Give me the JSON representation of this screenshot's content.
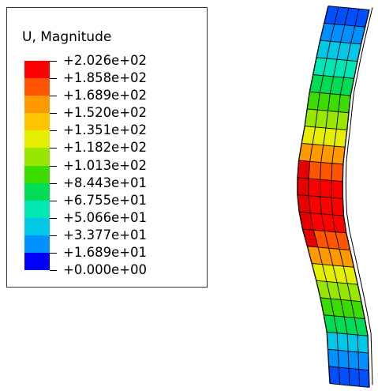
{
  "legend": {
    "title": "U, Magnitude",
    "ticks": [
      "+2.026e+02",
      "+1.858e+02",
      "+1.689e+02",
      "+1.520e+02",
      "+1.351e+02",
      "+1.182e+02",
      "+1.013e+02",
      "+8.443e+01",
      "+6.755e+01",
      "+5.066e+01",
      "+3.377e+01",
      "+1.689e+01",
      "+0.000e+00"
    ],
    "colors_top_to_bottom": [
      "#ff0000",
      "#ff5500",
      "#ff9900",
      "#ffc400",
      "#e6ee00",
      "#99e600",
      "#3cdc00",
      "#00dc55",
      "#00e6b4",
      "#00c8e6",
      "#0090ff",
      "#0000ff"
    ]
  },
  "model": {
    "type": "deformed beam contour",
    "rows": 22,
    "cols": 4,
    "row_colors_top_to_bottom": [
      "#0050ff",
      "#0090ff",
      "#00c8e6",
      "#00e6b4",
      "#00dc55",
      "#3cdc00",
      "#99e600",
      "#e6ee00",
      "#ff9900",
      "#ff5500",
      "#ff0000",
      "#ff0000",
      "#ff0000",
      "#ff5500",
      "#ff9900",
      "#e6ee00",
      "#99e600",
      "#3cdc00",
      "#00dc55",
      "#00c8e6",
      "#0090ff",
      "#0050ff"
    ]
  }
}
